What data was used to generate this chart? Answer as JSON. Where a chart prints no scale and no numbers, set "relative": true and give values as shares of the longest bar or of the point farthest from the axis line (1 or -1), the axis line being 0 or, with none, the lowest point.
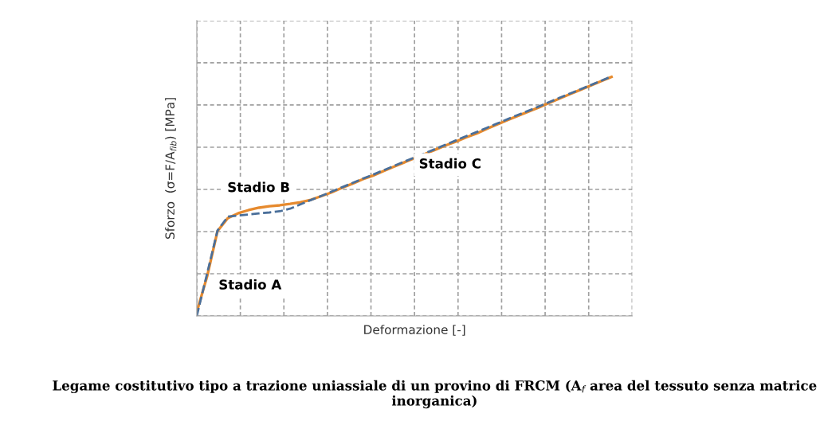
{
  "chart_data": {
    "type": "line",
    "relative": true,
    "xlabel": "Deformazione [-]",
    "ylabel": "Sforzo  (σ=F/A$_{fib}$) [MPa]",
    "categories": [
      null,
      null,
      null,
      null,
      null,
      null,
      null,
      null,
      null,
      null,
      null,
      null,
      null,
      null,
      null,
      null,
      null,
      null,
      null,
      null,
      null,
      null,
      null,
      null,
      null,
      null,
      null,
      null,
      null,
      null,
      null,
      null,
      null,
      null,
      null,
      null,
      null,
      null,
      null,
      null,
      null,
      null,
      null
    ],
    "series": [
      {
        "color": "#e68a2e",
        "line_style": "solid",
        "values": [
          0.017,
          0.166,
          0.355,
          0.409,
          0.429,
          0.442,
          0.452,
          0.458,
          0.462,
          0.468,
          0.475,
          0.485,
          0.5,
          0.516,
          0.535,
          0.552,
          0.571,
          0.586,
          0.605,
          0.623,
          0.641,
          0.659,
          0.676,
          0.694,
          0.712,
          0.728,
          0.746,
          0.762,
          0.782,
          0.8,
          0.818,
          0.836,
          0.853,
          0.871,
          0.89,
          0.908,
          0.926,
          0.944,
          0.962,
          0.98,
          0.998,
          null,
          null
        ]
      },
      {
        "color": "#4a6f9a",
        "line_style": "dashed",
        "values": [
          0,
          0.178,
          0.357,
          0.415,
          0.419,
          0.424,
          0.428,
          0.432,
          0.437,
          0.448,
          0.466,
          0.484,
          0.501,
          0.519,
          0.537,
          0.555,
          0.573,
          0.59,
          0.608,
          0.626,
          0.644,
          0.662,
          0.679,
          0.697,
          0.715,
          0.733,
          0.751,
          0.768,
          0.786,
          0.804,
          0.822,
          0.84,
          0.857,
          0.875,
          0.893,
          0.911,
          0.929,
          0.946,
          0.964,
          0.982,
          1,
          null,
          null
        ]
      }
    ],
    "grid": true,
    "marker": "none",
    "annotations": [
      "Stadio A",
      "Stadio B",
      "Stadio C",
      "Legame costitutivo tipo a trazione uniassiale di un provino di FRCM (A$_{f}$ area del tessuto senza matrice inorganica)"
    ]
  }
}
